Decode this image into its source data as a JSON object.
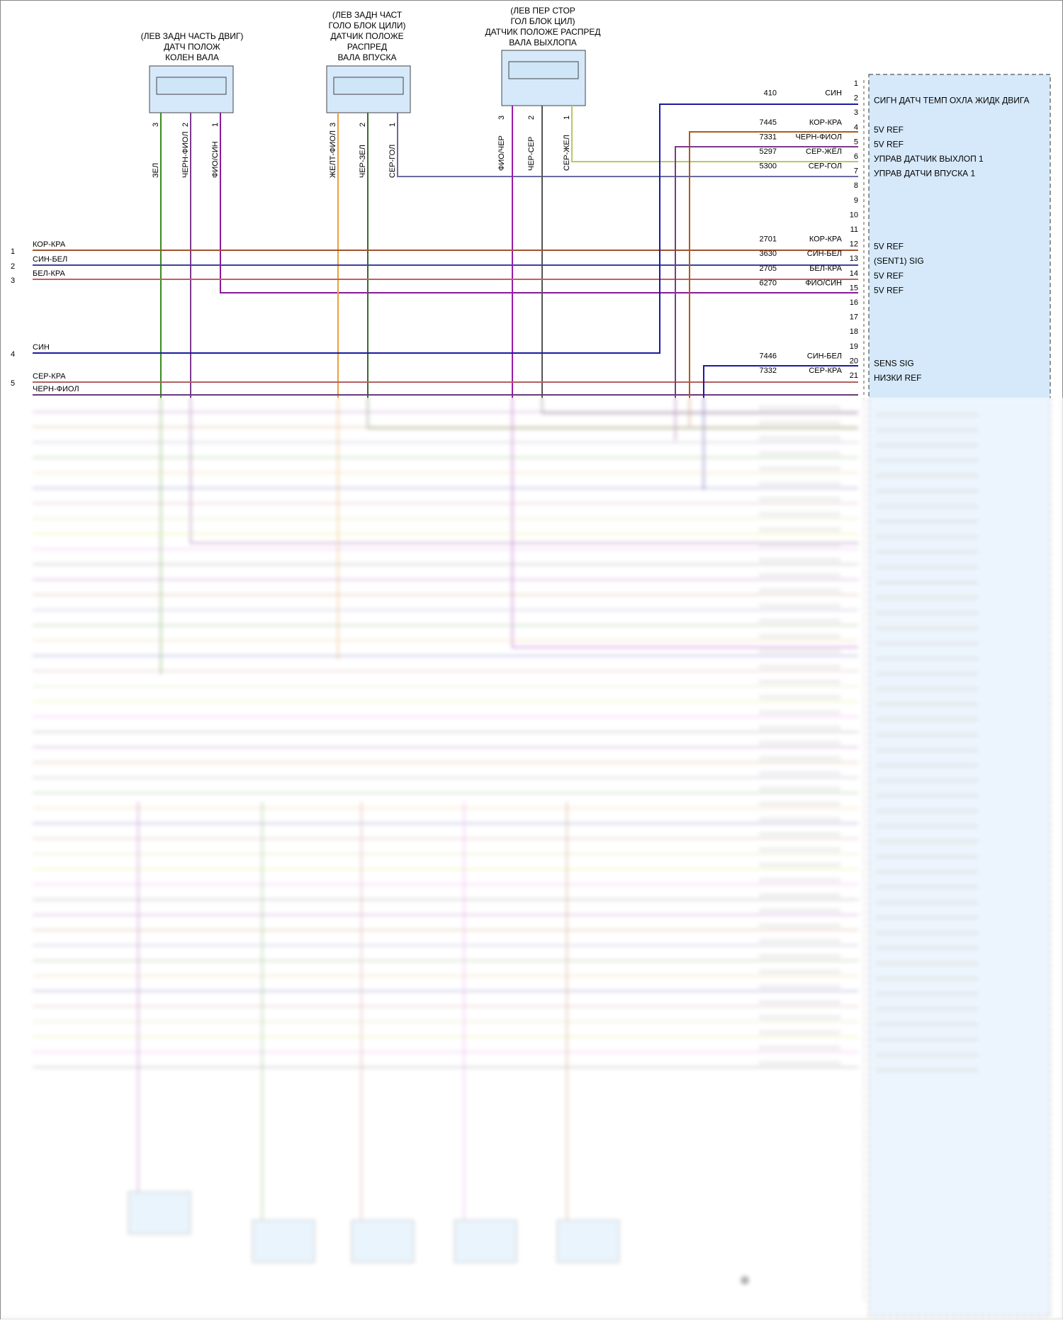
{
  "sensors": [
    {
      "title_lines": [
        "(ЛЕВ ЗАДН ЧАСТЬ ДВИГ)",
        "ДАТЧ ПОЛОЖ",
        "КОЛЕН ВАЛА"
      ],
      "pins": [
        {
          "pin": "3",
          "wire": "ЗЕЛ",
          "color": "#3a8a1e"
        },
        {
          "pin": "2",
          "wire": "ЧЕРН-ФИОЛ",
          "color": "#7a3a8a"
        },
        {
          "pin": "1",
          "wire": "ФИО/СИН",
          "color": "#8a1a9a"
        }
      ]
    },
    {
      "title_lines": [
        "(ЛЕВ ЗАДН ЧАСТ",
        "ГОЛО БЛОК ЦИЛИ)",
        "ДАТЧИК ПОЛОЖЕ",
        "РАСПРЕД",
        "ВАЛА ВПУСКА"
      ],
      "pins": [
        {
          "pin": "3",
          "wire": "ЖЕЛТ-ФИОЛ",
          "color": "#e8a040"
        },
        {
          "pin": "2",
          "wire": "ЧЕР-ЗЕЛ",
          "color": "#3a6a2a"
        },
        {
          "pin": "1",
          "wire": "СЕР-ГОЛ",
          "color": "#6a6aa0"
        }
      ]
    },
    {
      "title_lines": [
        "(ЛЕВ ПЕР СТОР",
        "ГОЛ БЛОК ЦИЛ)",
        "ДАТЧИК ПОЛОЖЕ РАСПРЕД",
        "ВАЛА ВЫХЛОПА"
      ],
      "pins": [
        {
          "pin": "3",
          "wire": "ФИО/ЧЕР",
          "color": "#9a1aaa"
        },
        {
          "pin": "2",
          "wire": "ЧЕР-СЕР",
          "color": "#555555"
        },
        {
          "pin": "1",
          "wire": "СЕР-ЖЕЛ",
          "color": "#b8c860"
        }
      ]
    }
  ],
  "left_connector": [
    {
      "pin": "1",
      "wire": "КОР-КРА",
      "color": "#a0522d"
    },
    {
      "pin": "2",
      "wire": "СИН-БЕЛ",
      "color": "#4040a0"
    },
    {
      "pin": "3",
      "wire": "БЕЛ-КРА",
      "color": "#c06060"
    },
    {
      "pin": "4",
      "wire": "СИН",
      "color": "#1a1aa0"
    },
    {
      "pin": "5",
      "wire": "СЕР-КРА",
      "color": "#b06060"
    },
    {
      "pin": "",
      "wire": "ЧЕРН-ФИОЛ",
      "color": "#6a3a7a"
    }
  ],
  "pcm_pins": [
    {
      "pin": "1",
      "circuit": "",
      "wire": "",
      "function": ""
    },
    {
      "pin": "2",
      "circuit": "410",
      "wire": "СИН",
      "function": "СИГН ДАТЧ ТЕМП ОХЛА ЖИДК ДВИГА",
      "color": "#1a1aa0"
    },
    {
      "pin": "3",
      "circuit": "",
      "wire": "",
      "function": ""
    },
    {
      "pin": "4",
      "circuit": "7445",
      "wire": "КОР-КРА",
      "function": "5V REF",
      "color": "#b05a1a"
    },
    {
      "pin": "5",
      "circuit": "7331",
      "wire": "ЧЕРН-ФИОЛ",
      "function": "5V REF",
      "color": "#7a3a8a"
    },
    {
      "pin": "6",
      "circuit": "5297",
      "wire": "СЕР-ЖЁЛ",
      "function": "УПРАВ ДАТЧИК ВЫХЛОП 1",
      "color": "#b8c860"
    },
    {
      "pin": "7",
      "circuit": "5300",
      "wire": "СЕР-ГОЛ",
      "function": "УПРАВ ДАТЧИ ВПУСКА 1",
      "color": "#6a6aa0"
    },
    {
      "pin": "8",
      "circuit": "",
      "wire": "",
      "function": ""
    },
    {
      "pin": "9",
      "circuit": "",
      "wire": "",
      "function": ""
    },
    {
      "pin": "10",
      "circuit": "",
      "wire": "",
      "function": ""
    },
    {
      "pin": "11",
      "circuit": "",
      "wire": "",
      "function": ""
    },
    {
      "pin": "12",
      "circuit": "2701",
      "wire": "КОР-КРА",
      "function": "5V REF",
      "color": "#a0522d"
    },
    {
      "pin": "13",
      "circuit": "3630",
      "wire": "СИН-БЕЛ",
      "function": "(SENT1) SIG",
      "color": "#4040a0"
    },
    {
      "pin": "14",
      "circuit": "2705",
      "wire": "БЕЛ-КРА",
      "function": "5V REF",
      "color": "#c06060"
    },
    {
      "pin": "15",
      "circuit": "6270",
      "wire": "ФИО/СИН",
      "function": "5V REF",
      "color": "#8a1a9a"
    },
    {
      "pin": "16",
      "circuit": "",
      "wire": "",
      "function": ""
    },
    {
      "pin": "17",
      "circuit": "",
      "wire": "",
      "function": ""
    },
    {
      "pin": "18",
      "circuit": "",
      "wire": "",
      "function": ""
    },
    {
      "pin": "19",
      "circuit": "",
      "wire": "",
      "function": ""
    },
    {
      "pin": "20",
      "circuit": "7446",
      "wire": "СИН-БЕЛ",
      "function": "SENS SIG",
      "color": "#1a1aa0"
    },
    {
      "pin": "21",
      "circuit": "7332",
      "wire": "СЕР-КРА",
      "function": "НИЗКИ REF",
      "color": "#b06060"
    }
  ]
}
